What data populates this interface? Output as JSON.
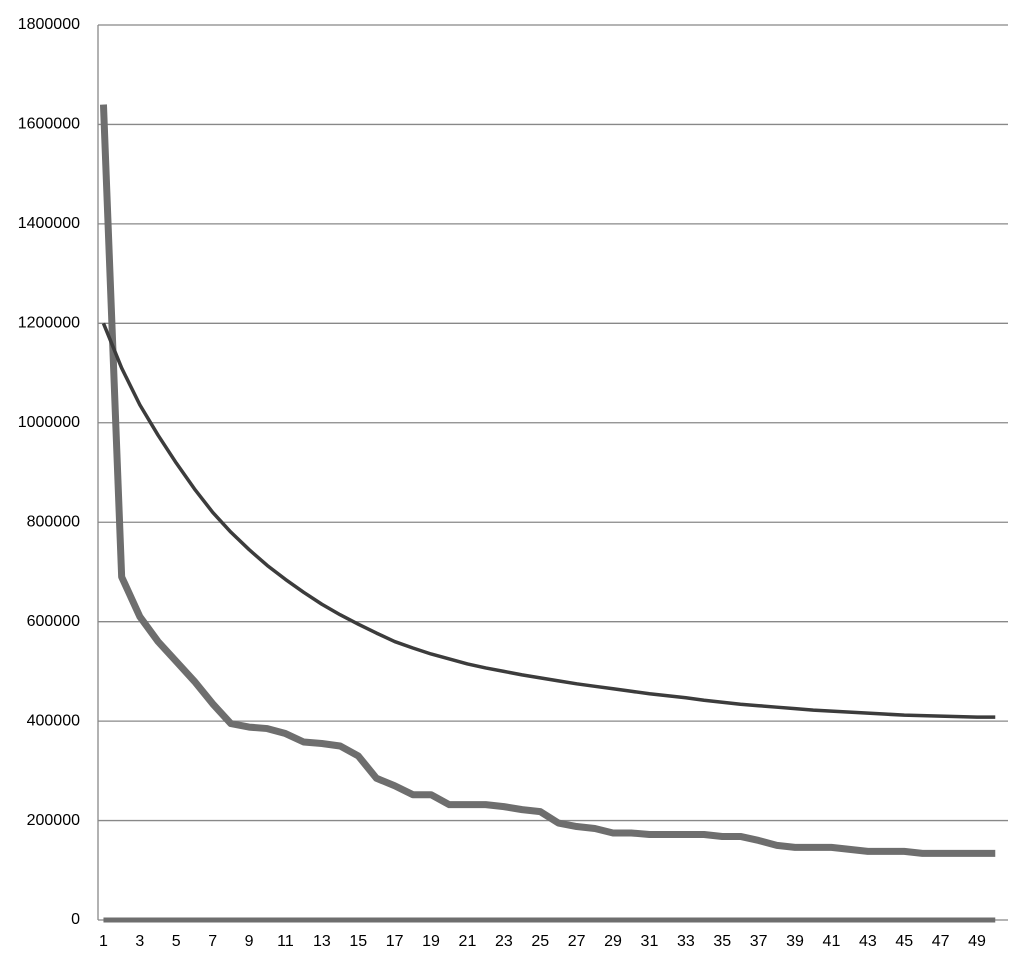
{
  "chart_data": {
    "type": "line",
    "categories": [
      1,
      null,
      3,
      null,
      5,
      null,
      7,
      null,
      9,
      null,
      11,
      null,
      13,
      null,
      15,
      null,
      17,
      null,
      19,
      null,
      21,
      null,
      23,
      null,
      25,
      null,
      27,
      null,
      29,
      null,
      31,
      null,
      33,
      null,
      35,
      null,
      37,
      null,
      39,
      null,
      41,
      null,
      43,
      null,
      45,
      null,
      47,
      null,
      49,
      null
    ],
    "series": [
      {
        "color": "#6e6e6e",
        "width": 7,
        "values": [
          1640000,
          690000,
          610000,
          560000,
          520000,
          480000,
          435000,
          395000,
          388000,
          385000,
          375000,
          358000,
          355000,
          350000,
          330000,
          285000,
          270000,
          252000,
          252000,
          232000,
          232000,
          232000,
          228000,
          222000,
          218000,
          195000,
          188000,
          184000,
          175000,
          175000,
          172000,
          172000,
          172000,
          172000,
          168000,
          168000,
          160000,
          150000,
          146000,
          146000,
          146000,
          142000,
          138000,
          138000,
          138000,
          134000,
          134000,
          134000,
          134000,
          134000
        ]
      },
      {
        "color": "#3c3c3c",
        "width": 3.5,
        "values": [
          1200000,
          1110000,
          1036000,
          975000,
          919000,
          867000,
          820000,
          780000,
          745000,
          713000,
          685000,
          659000,
          635000,
          614000,
          595000,
          577000,
          560000,
          547000,
          535000,
          525000,
          515000,
          507000,
          500000,
          493000,
          487000,
          481000,
          475000,
          470000,
          465000,
          460000,
          455000,
          451000,
          447000,
          442000,
          438000,
          434000,
          431000,
          428000,
          425000,
          422000,
          420000,
          418000,
          416000,
          414000,
          412000,
          411000,
          410000,
          409000,
          408000,
          408000
        ]
      },
      {
        "color": "#6e6e6e",
        "width": 5,
        "values": [
          0,
          0,
          0,
          0,
          0,
          0,
          0,
          0,
          0,
          0,
          0,
          0,
          0,
          0,
          0,
          0,
          0,
          0,
          0,
          0,
          0,
          0,
          0,
          0,
          0,
          0,
          0,
          0,
          0,
          0,
          0,
          0,
          0,
          0,
          0,
          0,
          0,
          0,
          0,
          0,
          0,
          0,
          0,
          0,
          0,
          0,
          0,
          0,
          0,
          0
        ]
      }
    ],
    "ylim": [
      0,
      1800000
    ],
    "yticks": [
      0,
      200000,
      400000,
      600000,
      800000,
      1000000,
      1200000,
      1400000,
      1600000,
      1800000
    ],
    "grid": true
  }
}
